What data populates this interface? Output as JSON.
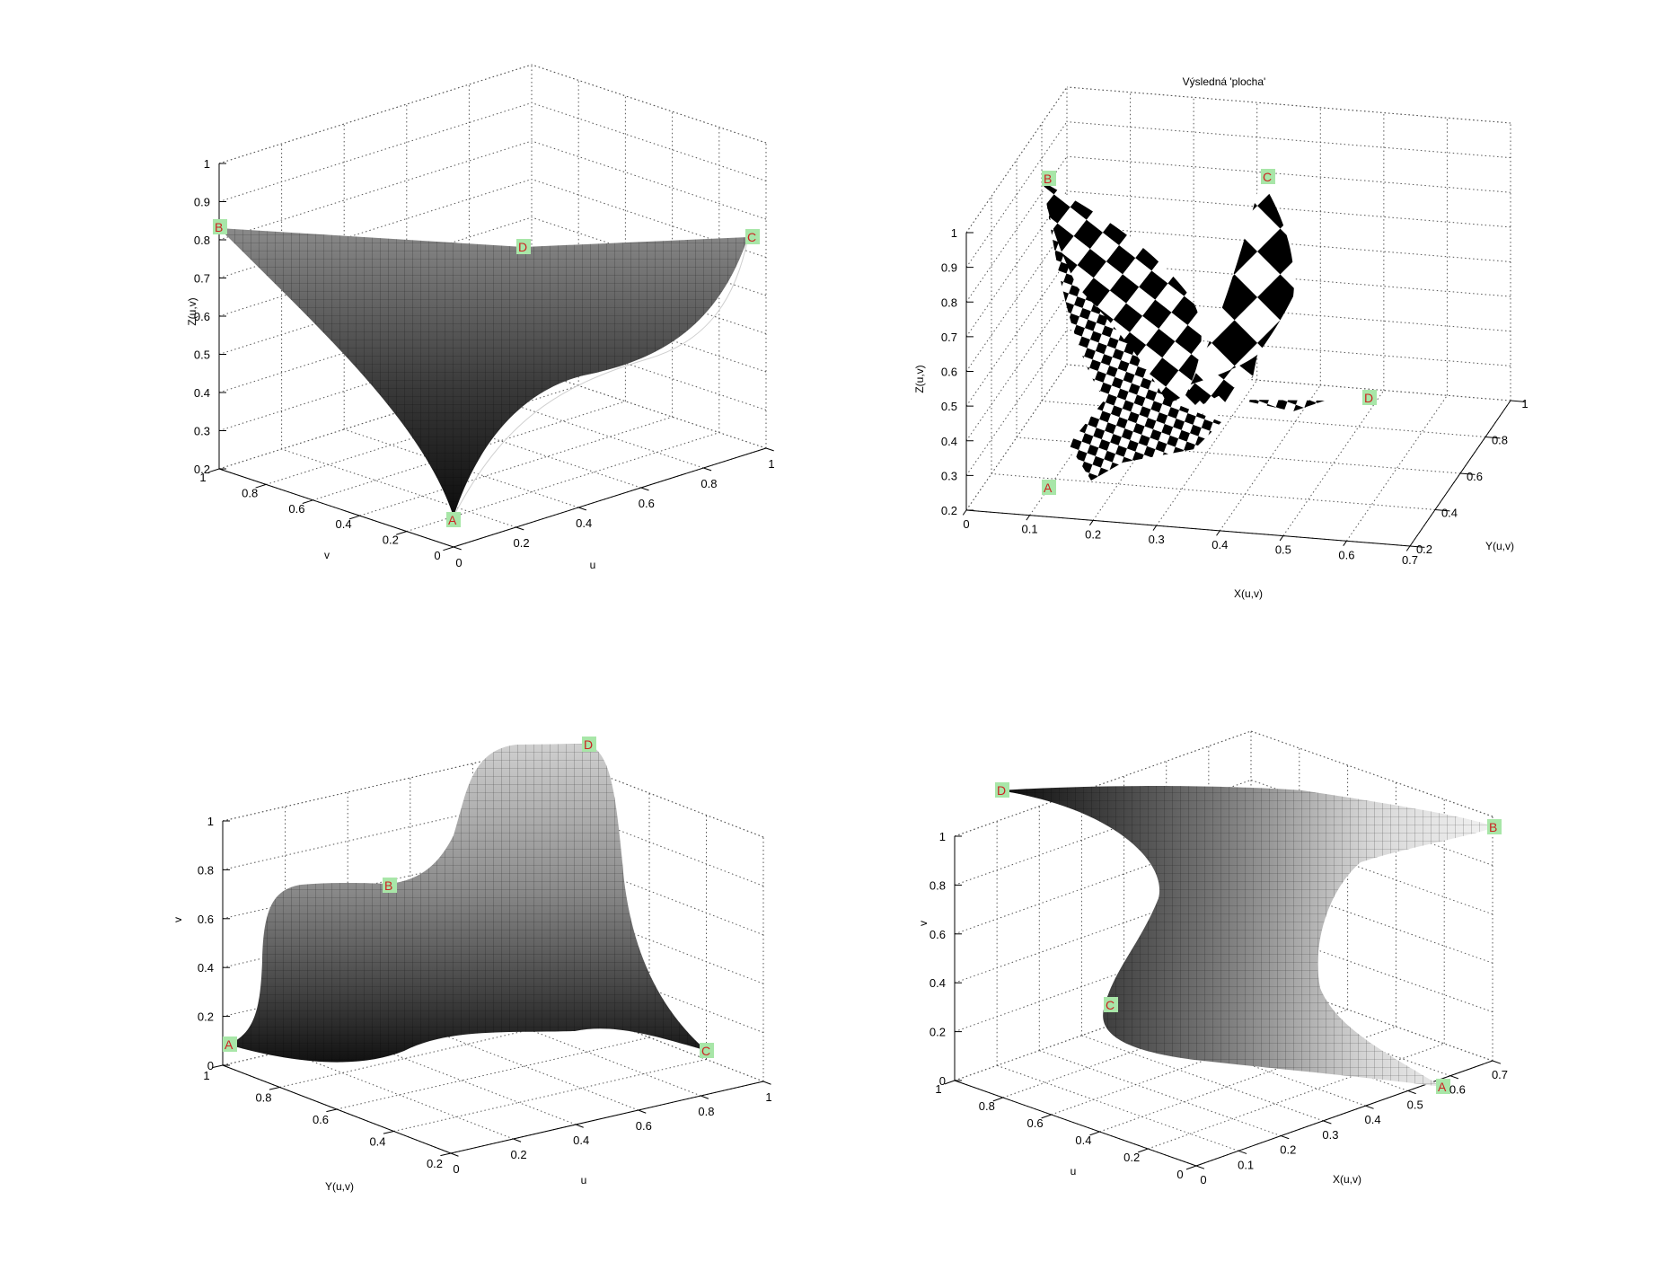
{
  "figure": {
    "colors": {
      "background": "#ffffff",
      "marker_bg": "#a8e6a8",
      "marker_text": "#cc2222",
      "surface_dark": "#1a1a1a",
      "surface_light": "#e6e6e6",
      "checker_dark": "#000000",
      "checker_light": "#ffffff"
    },
    "colormap": "gray",
    "marker_icon": "corner-point-marker-icon"
  },
  "chart_data": [
    {
      "id": "p1",
      "type": "surface",
      "title": "",
      "xlabel": "u",
      "ylabel": "v",
      "zlabel": "Z(u,v)",
      "x_ticks": [
        "0",
        "0.2",
        "0.4",
        "0.6",
        "0.8",
        "1"
      ],
      "y_ticks": [
        "0",
        "0.2",
        "0.4",
        "0.6",
        "0.8",
        "1"
      ],
      "z_ticks": [
        "0.2",
        "0.3",
        "0.4",
        "0.5",
        "0.6",
        "0.7",
        "0.8",
        "0.9",
        "1"
      ],
      "xlim": [
        0,
        1
      ],
      "ylim": [
        0,
        1
      ],
      "zlim": [
        0.2,
        1
      ],
      "grid": true,
      "corner_labels": [
        "A",
        "B",
        "C",
        "D"
      ]
    },
    {
      "id": "p2",
      "type": "surface",
      "title": "Výsledná 'plocha'",
      "xlabel": "X(u,v)",
      "ylabel": "Y(u,v)",
      "zlabel": "Z(u,v)",
      "x_ticks": [
        "0.7",
        "0.6",
        "0.5",
        "0.4",
        "0.3",
        "0.2",
        "0.1",
        "0"
      ],
      "y_ticks": [
        "0.2",
        "0.4",
        "0.6",
        "0.8",
        "1"
      ],
      "z_ticks": [
        "0.2",
        "0.3",
        "0.4",
        "0.5",
        "0.6",
        "0.7",
        "0.8",
        "0.9",
        "1"
      ],
      "xlim": [
        0,
        0.7
      ],
      "ylim": [
        0.2,
        1
      ],
      "zlim": [
        0.2,
        1
      ],
      "grid": true,
      "texture": "checkerboard",
      "corner_labels": [
        "A",
        "B",
        "C",
        "D"
      ]
    },
    {
      "id": "p3",
      "type": "surface",
      "title": "",
      "xlabel": "u",
      "ylabel": "Y(u,v)",
      "zlabel": "v",
      "x_ticks": [
        "0",
        "0.2",
        "0.4",
        "0.6",
        "0.8",
        "1"
      ],
      "y_ticks": [
        "0.2",
        "0.4",
        "0.6",
        "0.8",
        "1"
      ],
      "z_ticks": [
        "0",
        "0.2",
        "0.4",
        "0.6",
        "0.8",
        "1"
      ],
      "xlim": [
        0,
        1
      ],
      "ylim": [
        0.2,
        1
      ],
      "zlim": [
        0,
        1
      ],
      "grid": true,
      "corner_labels": [
        "A",
        "B",
        "C",
        "D"
      ]
    },
    {
      "id": "p4",
      "type": "surface",
      "title": "",
      "xlabel": "X(u,v)",
      "ylabel": "u",
      "zlabel": "v",
      "x_ticks": [
        "0",
        "0.1",
        "0.2",
        "0.3",
        "0.4",
        "0.5",
        "0.6",
        "0.7"
      ],
      "y_ticks": [
        "0",
        "0.2",
        "0.4",
        "0.6",
        "0.8",
        "1"
      ],
      "z_ticks": [
        "0",
        "0.2",
        "0.4",
        "0.6",
        "0.8",
        "1"
      ],
      "xlim": [
        0,
        0.7
      ],
      "ylim": [
        0,
        1
      ],
      "zlim": [
        0,
        1
      ],
      "grid": true,
      "corner_labels": [
        "A",
        "B",
        "C",
        "D"
      ]
    }
  ]
}
